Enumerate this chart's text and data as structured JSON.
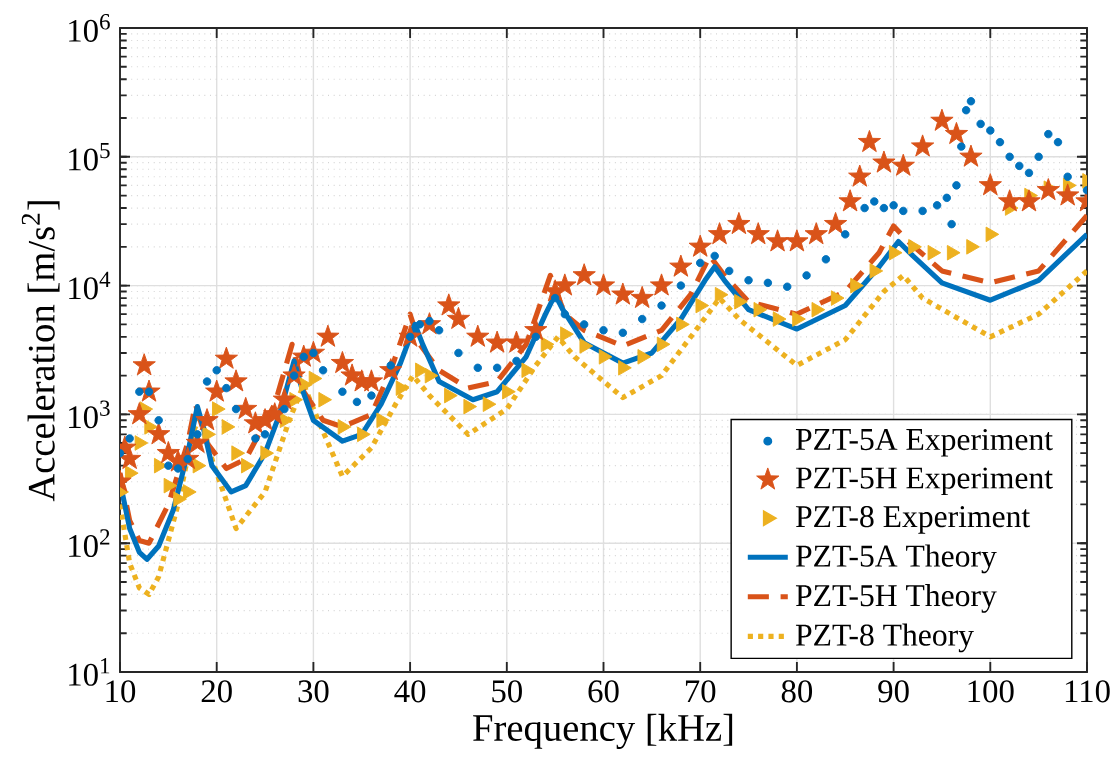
{
  "chart_data": {
    "type": "scatter",
    "xlabel": "Frequency [kHz]",
    "ylabel": "Acceleration [m/s$^{2}$]",
    "log": "y",
    "grid": true,
    "legend": "bottom right",
    "xlim": [
      10,
      110
    ],
    "xticks": [
      10,
      20,
      30,
      40,
      50,
      60,
      70,
      80,
      90,
      100,
      110
    ],
    "ylim": [
      10,
      1000000
    ],
    "yticks": [
      {
        "value": 10,
        "label": "10$^{1}$"
      },
      {
        "value": 100,
        "label": "10$^{2}$"
      },
      {
        "value": 1000,
        "label": "10$^{3}$"
      },
      {
        "value": 10000,
        "label": "10$^{4}$"
      },
      {
        "value": 100000,
        "label": "10$^{5}$"
      },
      {
        "value": 1000000,
        "label": "10$^{6}$"
      }
    ],
    "series": [
      {
        "name": "PZT-5A Experiment",
        "marker": "circle",
        "color": "#0072bd",
        "x": [
          10,
          11,
          12,
          13,
          14,
          15,
          16,
          17,
          18,
          19,
          20,
          21,
          22,
          24,
          25,
          27,
          28,
          29,
          30,
          31,
          33,
          34.5,
          36,
          38,
          40,
          41,
          42,
          43,
          45,
          47,
          49,
          51,
          53,
          55,
          56,
          58,
          60,
          62,
          64,
          66,
          68,
          70,
          71.5,
          73,
          75,
          77,
          79,
          81,
          83,
          85,
          87,
          88,
          89,
          90,
          91,
          93,
          94.5,
          95.5,
          96,
          96.5,
          97,
          97.5,
          98,
          99,
          100,
          101,
          102,
          103,
          104,
          105,
          106,
          107,
          108,
          110
        ],
        "values": [
          500,
          650,
          1500,
          1500,
          900,
          400,
          380,
          450,
          700,
          1800,
          2200,
          1600,
          1100,
          650,
          700,
          1100,
          2000,
          2800,
          3000,
          2200,
          1500,
          1250,
          1400,
          2400,
          4000,
          5000,
          5300,
          4500,
          3000,
          2300,
          2300,
          2600,
          4000,
          8000,
          6000,
          5000,
          4500,
          4300,
          5500,
          7000,
          10000,
          15000,
          17000,
          13000,
          11000,
          10500,
          9800,
          12000,
          16000,
          25000,
          40000,
          45000,
          40000,
          42000,
          38000,
          38000,
          42000,
          48000,
          30000,
          60000,
          120000,
          230000,
          270000,
          180000,
          160000,
          130000,
          100000,
          85000,
          75000,
          100000,
          150000,
          130000,
          70000,
          55000
        ]
      },
      {
        "name": "PZT-5H Experiment",
        "marker": "star",
        "color": "#d95319",
        "x": [
          10,
          10.5,
          11,
          12,
          12.5,
          13,
          14,
          15,
          16,
          17,
          18,
          19,
          20,
          21,
          22,
          23,
          24,
          25,
          26,
          27,
          28,
          29,
          30,
          31.5,
          33,
          34,
          35,
          36,
          38,
          40,
          42,
          44,
          45,
          47,
          49,
          51,
          53,
          55,
          56,
          58,
          60,
          62,
          64,
          66,
          68,
          70,
          72,
          74,
          76,
          78,
          80,
          82,
          84,
          85.5,
          86.5,
          87.5,
          89,
          91,
          93,
          95,
          96.5,
          98,
          100,
          102,
          104,
          106,
          108,
          110
        ],
        "values": [
          300,
          550,
          450,
          1000,
          2400,
          1500,
          700,
          500,
          430,
          450,
          600,
          900,
          1500,
          2700,
          1800,
          1100,
          850,
          900,
          1000,
          1300,
          2000,
          2800,
          3000,
          4000,
          2500,
          2000,
          1800,
          1800,
          2200,
          4000,
          5000,
          7000,
          5500,
          4000,
          3600,
          3600,
          4500,
          9000,
          10000,
          12000,
          10000,
          8500,
          8000,
          10000,
          14000,
          20000,
          25000,
          30000,
          25000,
          22000,
          22000,
          25000,
          30000,
          45000,
          70000,
          130000,
          90000,
          85000,
          120000,
          190000,
          150000,
          100000,
          60000,
          45000,
          45000,
          55000,
          50000,
          45000
        ]
      },
      {
        "name": "PZT-8 Experiment",
        "marker": "triangle",
        "color": "#edb120",
        "x": [
          10,
          11,
          12,
          12.5,
          13,
          14,
          15,
          16,
          17,
          18,
          19,
          20,
          21,
          22,
          23,
          25,
          27,
          28,
          29,
          30,
          31,
          33,
          35,
          37,
          39,
          41,
          42,
          44,
          46,
          48,
          50,
          52,
          54,
          56,
          58,
          60,
          62,
          64,
          66,
          68,
          70,
          72,
          74,
          76,
          78,
          80,
          82,
          84,
          86,
          88,
          90,
          92,
          94,
          96,
          98,
          100,
          102,
          104,
          106,
          108,
          110
        ],
        "values": [
          250,
          350,
          600,
          1100,
          800,
          400,
          280,
          220,
          250,
          400,
          700,
          1100,
          800,
          500,
          400,
          500,
          900,
          1300,
          1700,
          1900,
          1300,
          800,
          700,
          900,
          1600,
          2200,
          2000,
          1400,
          1150,
          1200,
          1500,
          2200,
          3500,
          4200,
          3400,
          2800,
          2300,
          2800,
          3500,
          5000,
          7000,
          8500,
          7500,
          6500,
          5500,
          5500,
          6500,
          8000,
          10000,
          13000,
          18000,
          20000,
          18000,
          18000,
          20000,
          25000,
          40000,
          50000,
          57000,
          60000,
          65000
        ]
      },
      {
        "name": "PZT-5A Theory",
        "type": "line",
        "line_style": "solid",
        "color": "#0072bd",
        "x": [
          10,
          11,
          12,
          12.8,
          14,
          15.5,
          17,
          18,
          18.6,
          19.5,
          21.5,
          23,
          25,
          26.5,
          28,
          28.8,
          30,
          33,
          35,
          37,
          39,
          40.5,
          41.3,
          43,
          46.5,
          49,
          52,
          54,
          55,
          55.8,
          58,
          62,
          65,
          68,
          70.5,
          71.5,
          72.5,
          75,
          80,
          85,
          88.5,
          90.5,
          92,
          95,
          100,
          105,
          110
        ],
        "values": [
          300,
          130,
          85,
          75,
          95,
          180,
          500,
          1150,
          800,
          400,
          250,
          280,
          500,
          1000,
          2600,
          1600,
          900,
          620,
          700,
          1200,
          2500,
          5000,
          3500,
          1800,
          1300,
          1500,
          2800,
          6000,
          8500,
          6500,
          3600,
          2500,
          3000,
          5500,
          11000,
          14000,
          11000,
          6500,
          4600,
          7000,
          14000,
          22000,
          17000,
          10500,
          7700,
          11000,
          25000
        ]
      },
      {
        "name": "PZT-5H Theory",
        "type": "line",
        "line_style": "dashed",
        "color": "#d95319",
        "x": [
          10,
          11,
          12,
          13,
          15,
          17,
          17.8,
          19,
          21,
          23,
          26,
          27.8,
          29,
          31,
          33,
          36,
          38,
          40,
          41,
          43,
          46,
          49,
          52,
          54.5,
          56,
          58,
          62,
          66,
          69,
          71,
          72.5,
          75,
          80,
          85,
          88.5,
          90,
          91.5,
          95,
          100,
          105,
          110
        ],
        "values": [
          350,
          150,
          105,
          100,
          200,
          600,
          1200,
          600,
          380,
          450,
          1200,
          3500,
          1500,
          900,
          800,
          1000,
          2200,
          6000,
          3500,
          2200,
          1600,
          1800,
          3500,
          12000,
          6000,
          4500,
          3400,
          4500,
          8500,
          17000,
          12000,
          7500,
          6000,
          9000,
          18000,
          29000,
          22000,
          13000,
          10500,
          13000,
          35000
        ]
      },
      {
        "name": "PZT-8 Theory",
        "type": "line",
        "line_style": "dotted",
        "color": "#edb120",
        "x": [
          10,
          11,
          12,
          13,
          14,
          16,
          17.5,
          18.3,
          19.5,
          22,
          25,
          27.5,
          29,
          30.5,
          33,
          36,
          38.5,
          40.3,
          42,
          46,
          50,
          53,
          55.3,
          57,
          62,
          66,
          70,
          72,
          74,
          80,
          85,
          89,
          91,
          93,
          100,
          105,
          110
        ],
        "values": [
          200,
          70,
          45,
          40,
          55,
          200,
          700,
          1000,
          450,
          130,
          250,
          900,
          1700,
          900,
          330,
          550,
          1200,
          2000,
          1400,
          700,
          1100,
          2400,
          4000,
          2800,
          1350,
          2000,
          5000,
          8000,
          5500,
          2400,
          3800,
          9000,
          12000,
          8000,
          4000,
          6000,
          13000
        ]
      }
    ]
  }
}
